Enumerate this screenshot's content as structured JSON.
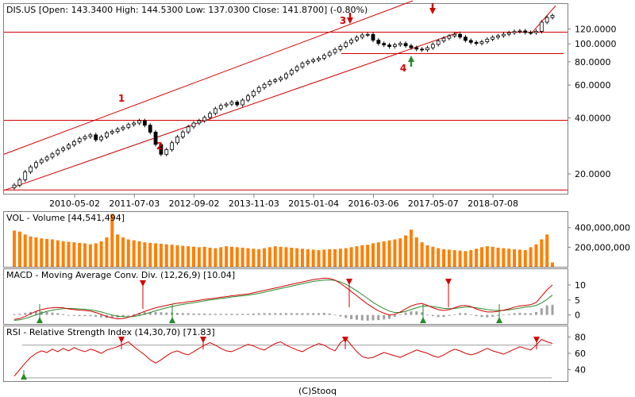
{
  "footer": "(C)Stooq",
  "colors": {
    "candle": "#000000",
    "trendline": "#d40000",
    "volume": "#ff7f00",
    "macd_line": "#d40000",
    "signal_line": "#2a8a2a",
    "histogram": "#a0a0a0",
    "rsi_line": "#d40000",
    "rsi_guides": "#a0a0a0",
    "buy_marker": "#2a8a2a",
    "sell_marker": "#d40000",
    "frame": "#808080"
  },
  "chart_data": [
    {
      "type": "candlestick",
      "title": "DIS.US [Open: 143.3400  High: 144.5300  Low: 137.0300  Close: 141.8700]  (-0.80%)",
      "scale": "log",
      "y_ticks": [
        "120.0000",
        "100.0000",
        "80.0000",
        "60.0000",
        "40.0000",
        "20.0000"
      ],
      "y_tick_values": [
        120,
        100,
        80,
        60,
        40,
        20
      ],
      "x_tick_labels": [
        "2010-05-02",
        "2011-07-03",
        "2012-09-02",
        "2013-11-03",
        "2015-01-04",
        "2016-03-06",
        "2017-05-07",
        "2018-07-08"
      ],
      "ylim": [
        15.8,
        162
      ],
      "series": [
        {
          "values": [
            17.4,
            18.6,
            20.5,
            21.8,
            23.0,
            23.8,
            24.6,
            25.6,
            26.8,
            27.5,
            28.6,
            29.8,
            30.9,
            31.7,
            32.4,
            30.5,
            31.6,
            33.2,
            33.8,
            34.8,
            35.6,
            36.8,
            37.5,
            38.6,
            36.5,
            33.5,
            28.8,
            25.5,
            27.0,
            29.4,
            31.6,
            33.6,
            35.8,
            37.5,
            38.6,
            40.2,
            42.3,
            44.8,
            46.6,
            47.4,
            48.6,
            47.0,
            49.8,
            52.5,
            55.4,
            58.2,
            60.5,
            62.8,
            64.0,
            65.6,
            68.8,
            72.0,
            75.2,
            78.5,
            80.4,
            82.0,
            83.6,
            86.6,
            89.8,
            93.2,
            96.8,
            101.2,
            104.8,
            108.4,
            111.5,
            112.2,
            104.5,
            100.4,
            98.5,
            96.6,
            98.8,
            100.4,
            97.5,
            95.3,
            93.6,
            92.8,
            95.2,
            99.2,
            103.5,
            107.1,
            110.2,
            112.4,
            108.6,
            104.2,
            101.8,
            100.4,
            102.5,
            105.8,
            108.4,
            110.4,
            112.5,
            114.6,
            116.4,
            117.2,
            115.0,
            114.8,
            116.6,
            130.6,
            138.4,
            141.9
          ]
        }
      ],
      "annotations": [
        {
          "label": "1",
          "type": "trend-touch",
          "arrow": "none"
        },
        {
          "label": "2",
          "type": "trend-touch",
          "arrow": "none"
        },
        {
          "label": "3",
          "type": "sell",
          "arrow": "down"
        },
        {
          "label": "4",
          "type": "buy",
          "arrow": "up"
        },
        {
          "label": "",
          "type": "sell",
          "arrow": "down"
        }
      ]
    },
    {
      "type": "bar",
      "title": "VOL - Volume [44,541,494]",
      "y_ticks": [
        "400,000,000",
        "200,000,000"
      ],
      "y_tick_values": [
        400000000,
        200000000
      ],
      "ylim": [
        0,
        560000000
      ],
      "series": [
        {
          "name": "Volume",
          "values": [
            370,
            360,
            330,
            310,
            300,
            290,
            285,
            280,
            270,
            260,
            255,
            250,
            245,
            240,
            230,
            240,
            260,
            300,
            540,
            330,
            300,
            280,
            270,
            260,
            250,
            245,
            240,
            235,
            230,
            225,
            220,
            215,
            210,
            205,
            200,
            205,
            195,
            190,
            200,
            210,
            205,
            200,
            195,
            190,
            185,
            180,
            190,
            200,
            210,
            205,
            200,
            195,
            190,
            185,
            180,
            175,
            170,
            175,
            180,
            180,
            185,
            190,
            200,
            210,
            220,
            225,
            240,
            250,
            260,
            270,
            280,
            290,
            320,
            380,
            300,
            250,
            220,
            205,
            190,
            180,
            175,
            170,
            165,
            160,
            170,
            185,
            200,
            210,
            205,
            195,
            190,
            185,
            180,
            175,
            170,
            200,
            230,
            280,
            330,
            44
          ]
        }
      ]
    },
    {
      "type": "line",
      "title": "MACD - Moving Average Conv. Div. (12,26,9) [10.04]",
      "y_ticks": [
        "10",
        "5",
        "0"
      ],
      "y_tick_values": [
        10,
        5,
        0
      ],
      "ylim": [
        -3,
        15
      ],
      "series": [
        {
          "name": "MACD",
          "values": [
            -1.5,
            -1.2,
            -0.5,
            0.4,
            1.2,
            1.8,
            2.2,
            2.4,
            2.5,
            2.4,
            2.0,
            1.8,
            1.6,
            1.5,
            1.3,
            0.8,
            0.2,
            -0.5,
            -1.0,
            -1.3,
            -1.2,
            -0.8,
            -0.2,
            0.5,
            1.2,
            1.8,
            2.4,
            2.8,
            3.2,
            3.6,
            3.9,
            4.1,
            4.4,
            4.6,
            4.9,
            5.2,
            5.4,
            5.6,
            5.9,
            6.1,
            6.4,
            6.6,
            6.8,
            7.0,
            7.4,
            7.8,
            8.2,
            8.6,
            9.0,
            9.4,
            9.8,
            10.2,
            10.6,
            11.0,
            11.4,
            11.8,
            12.0,
            12.3,
            12.2,
            11.6,
            10.5,
            9.2,
            7.8,
            6.4,
            5.0,
            3.6,
            2.4,
            1.4,
            0.6,
            0.0,
            0.2,
            1.0,
            2.0,
            3.0,
            3.6,
            3.8,
            3.2,
            2.4,
            1.8,
            1.5,
            1.8,
            2.4,
            3.0,
            3.2,
            2.8,
            2.0,
            1.4,
            1.0,
            1.0,
            1.2,
            1.6,
            2.0,
            2.6,
            3.0,
            3.2,
            3.4,
            4.2,
            6.2,
            8.4,
            10.0
          ]
        },
        {
          "name": "Signal",
          "values": [
            -1.8,
            -1.6,
            -1.2,
            -0.6,
            0.0,
            0.6,
            1.2,
            1.6,
            1.9,
            2.1,
            2.2,
            2.1,
            2.0,
            1.9,
            1.7,
            1.4,
            1.0,
            0.5,
            0.0,
            -0.4,
            -0.6,
            -0.6,
            -0.5,
            -0.2,
            0.3,
            0.8,
            1.4,
            1.9,
            2.4,
            2.8,
            3.2,
            3.5,
            3.8,
            4.1,
            4.4,
            4.7,
            5.0,
            5.2,
            5.5,
            5.7,
            6.0,
            6.2,
            6.4,
            6.6,
            6.9,
            7.2,
            7.6,
            8.0,
            8.4,
            8.8,
            9.2,
            9.6,
            10.0,
            10.4,
            10.8,
            11.2,
            11.4,
            11.6,
            11.7,
            11.5,
            11.0,
            10.2,
            9.2,
            8.0,
            6.8,
            5.5,
            4.2,
            3.1,
            2.1,
            1.3,
            0.8,
            0.8,
            1.2,
            1.8,
            2.4,
            2.9,
            3.0,
            2.8,
            2.5,
            2.2,
            2.1,
            2.2,
            2.4,
            2.6,
            2.6,
            2.4,
            2.1,
            1.8,
            1.6,
            1.5,
            1.5,
            1.7,
            2.0,
            2.3,
            2.6,
            2.8,
            3.2,
            4.0,
            5.2,
            6.6
          ]
        },
        {
          "name": "Histogram",
          "values": [
            0.3,
            0.4,
            0.7,
            1.0,
            1.2,
            1.2,
            1.0,
            0.8,
            0.6,
            0.3,
            -0.2,
            -0.3,
            -0.4,
            -0.4,
            -0.4,
            -0.6,
            -0.8,
            -1.0,
            -1.0,
            -0.9,
            -0.6,
            -0.2,
            0.3,
            0.7,
            0.9,
            1.0,
            1.0,
            0.9,
            0.8,
            0.8,
            0.7,
            0.6,
            0.6,
            0.5,
            0.5,
            0.5,
            0.4,
            0.4,
            0.4,
            0.4,
            0.4,
            0.4,
            0.4,
            0.4,
            0.5,
            0.6,
            0.6,
            0.6,
            0.6,
            0.6,
            0.6,
            0.6,
            0.6,
            0.6,
            0.6,
            0.6,
            0.6,
            0.7,
            0.5,
            0.1,
            -0.5,
            -1.0,
            -1.4,
            -1.6,
            -1.8,
            -1.9,
            -1.8,
            -1.7,
            -1.5,
            -1.3,
            -0.6,
            0.2,
            0.8,
            1.2,
            1.2,
            0.9,
            0.2,
            -0.4,
            -0.7,
            -0.7,
            -0.3,
            0.2,
            0.6,
            0.6,
            0.2,
            -0.4,
            -0.7,
            -0.8,
            -0.6,
            -0.3,
            0.1,
            0.3,
            0.6,
            0.7,
            0.6,
            0.6,
            1.0,
            2.2,
            3.2,
            3.4
          ]
        }
      ]
    },
    {
      "type": "line",
      "title": "RSI - Relative Strength Index (14,30,70) [71.83]",
      "y_ticks": [
        "80",
        "60",
        "40"
      ],
      "y_tick_values": [
        80,
        60,
        40
      ],
      "ylim": [
        26,
        92
      ],
      "series": [
        {
          "name": "RSI",
          "values": [
            32,
            40,
            48,
            55,
            60,
            63,
            61,
            65,
            62,
            66,
            63,
            67,
            64,
            62,
            65,
            63,
            60,
            64,
            66,
            68,
            71,
            74,
            68,
            63,
            58,
            52,
            48,
            52,
            57,
            61,
            63,
            60,
            58,
            62,
            66,
            70,
            73,
            70,
            66,
            63,
            62,
            65,
            68,
            71,
            69,
            66,
            64,
            68,
            72,
            74,
            70,
            67,
            64,
            62,
            66,
            69,
            72,
            70,
            66,
            63,
            73,
            78,
            70,
            62,
            56,
            54,
            55,
            58,
            61,
            59,
            57,
            55,
            58,
            61,
            64,
            62,
            60,
            57,
            55,
            58,
            62,
            65,
            63,
            60,
            58,
            60,
            63,
            66,
            63,
            61,
            59,
            62,
            65,
            68,
            66,
            64,
            70,
            77,
            74,
            72
          ]
        }
      ]
    }
  ]
}
